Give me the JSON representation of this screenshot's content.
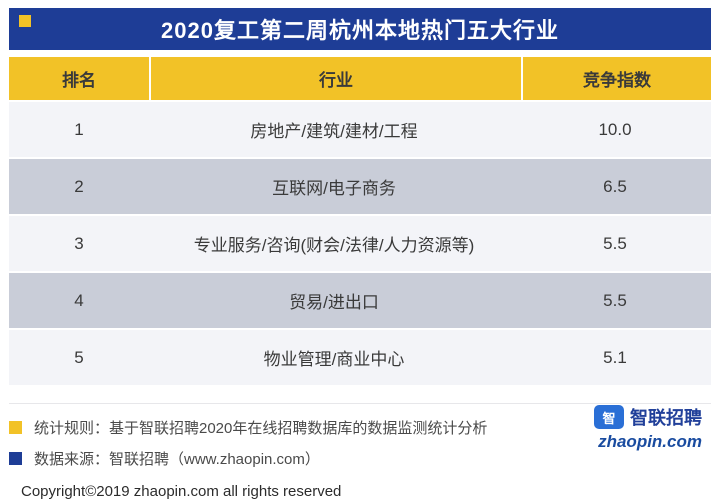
{
  "banner": {
    "title": "2020复工第二周杭州本地热门五大行业"
  },
  "table": {
    "headers": [
      "排名",
      "行业",
      "竞争指数"
    ],
    "rows": [
      [
        "1",
        "房地产/建筑/建材/工程",
        "10.0"
      ],
      [
        "2",
        "互联网/电子商务",
        "6.5"
      ],
      [
        "3",
        "专业服务/咨询(财会/法律/人力资源等)",
        "5.5"
      ],
      [
        "4",
        "贸易/进出口",
        "5.5"
      ],
      [
        "5",
        "物业管理/商业中心",
        "5.1"
      ]
    ]
  },
  "footer": {
    "note_stat": "统计规则：基于智联招聘2020年在线招聘数据库的数据监测统计分析",
    "note_source": "数据来源：智联招聘（www.zhaopin.com）",
    "copyright": "Copyright©2019 zhaopin.com all rights reserved"
  },
  "logo": {
    "icon_char": "智",
    "name": "智联招聘",
    "site": "zhaopin.com"
  },
  "colors": {
    "banner_blue": "#1e3d96",
    "header_yellow": "#f2c227",
    "row_alt_gray": "#c9cdd8",
    "row_light": "#f3f4f8",
    "logo_blue": "#2a6fd6"
  },
  "chart_data": {
    "type": "table",
    "title": "2020复工第二周杭州本地热门五大行业",
    "columns": [
      "排名",
      "行业",
      "竞争指数"
    ],
    "rows": [
      [
        1,
        "房地产/建筑/建材/工程",
        10.0
      ],
      [
        2,
        "互联网/电子商务",
        6.5
      ],
      [
        3,
        "专业服务/咨询(财会/法律/人力资源等)",
        5.5
      ],
      [
        4,
        "贸易/进出口",
        5.5
      ],
      [
        5,
        "物业管理/商业中心",
        5.1
      ]
    ]
  }
}
